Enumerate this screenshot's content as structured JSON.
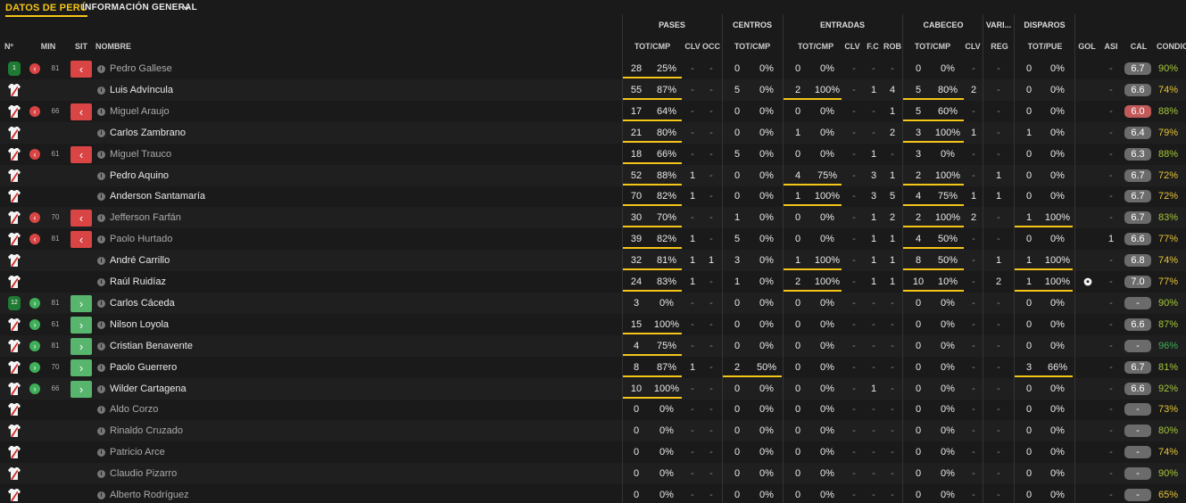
{
  "header": {
    "title": "DATOS DE PERÚ",
    "view": "INFORMACIÓN GENERAL"
  },
  "groups": [
    "PASES",
    "CENTROS",
    "ENTRADAS",
    "CABECEO",
    "VARI...",
    "DISPAROS"
  ],
  "columns": [
    "Nº",
    "MIN",
    "SIT",
    "NOMBRE",
    "TOT/CMP",
    "CLV",
    "OCC",
    "TOT/CMP",
    "TOT/CMP",
    "CLV",
    "F.C",
    "ROB",
    "TOT/CMP",
    "CLV",
    "REG",
    "TOT/PUE",
    "GOL",
    "ASI",
    "CAL",
    "CONDIC."
  ],
  "colors": {
    "accent": "#f5c518",
    "sub_out": "#d94444",
    "sub_in": "#58b56d",
    "gk": "#1f7a33"
  },
  "players": [
    {
      "n": "1",
      "gk": true,
      "sit": "out",
      "min": "81",
      "name": "Pedro Gallese",
      "p_tot": "28",
      "p_pct": "25%",
      "p_bar": 0.95,
      "p_clv": "-",
      "p_occ": "-",
      "c_tot": "0",
      "c_pct": "0%",
      "c_bar": 0,
      "e_tot": "0",
      "e_pct": "0%",
      "e_bar": 0,
      "e_clv": "-",
      "e_fc": "-",
      "e_rob": "-",
      "h_tot": "0",
      "h_pct": "0%",
      "h_bar": 0,
      "h_clv": "-",
      "reg": "-",
      "s_tot": "0",
      "s_pct": "0%",
      "s_bar": 0,
      "gol": "",
      "asi": "-",
      "cal": "6.7",
      "cond": "90%",
      "cond_color": "#a4c639"
    },
    {
      "n": "",
      "gk": false,
      "sit": "",
      "min": "",
      "name": "Luis Advíncula",
      "p_tot": "55",
      "p_pct": "87%",
      "p_bar": 0.95,
      "p_clv": "-",
      "p_occ": "-",
      "c_tot": "5",
      "c_pct": "0%",
      "c_bar": 0,
      "e_tot": "2",
      "e_pct": "100%",
      "e_bar": 0.95,
      "e_clv": "-",
      "e_fc": "1",
      "e_rob": "4",
      "h_tot": "5",
      "h_pct": "80%",
      "h_bar": 0.95,
      "h_clv": "2",
      "reg": "-",
      "s_tot": "0",
      "s_pct": "0%",
      "s_bar": 0,
      "gol": "",
      "asi": "-",
      "cal": "6.6",
      "cond": "74%",
      "cond_color": "#e5c437"
    },
    {
      "n": "",
      "gk": false,
      "sit": "out",
      "min": "66",
      "name": "Miguel Araujo",
      "p_tot": "17",
      "p_pct": "64%",
      "p_bar": 0.95,
      "p_clv": "-",
      "p_occ": "-",
      "c_tot": "0",
      "c_pct": "0%",
      "c_bar": 0,
      "e_tot": "0",
      "e_pct": "0%",
      "e_bar": 0,
      "e_clv": "-",
      "e_fc": "-",
      "e_rob": "1",
      "h_tot": "5",
      "h_pct": "60%",
      "h_bar": 0.95,
      "h_clv": "-",
      "reg": "-",
      "s_tot": "0",
      "s_pct": "0%",
      "s_bar": 0,
      "gol": "",
      "asi": "-",
      "cal": "6.0",
      "cal_low": true,
      "cond": "88%",
      "cond_color": "#a4c639"
    },
    {
      "n": "",
      "gk": false,
      "sit": "",
      "min": "",
      "name": "Carlos Zambrano",
      "p_tot": "21",
      "p_pct": "80%",
      "p_bar": 0.95,
      "p_clv": "-",
      "p_occ": "-",
      "c_tot": "0",
      "c_pct": "0%",
      "c_bar": 0,
      "e_tot": "1",
      "e_pct": "0%",
      "e_bar": 0,
      "e_clv": "-",
      "e_fc": "-",
      "e_rob": "2",
      "h_tot": "3",
      "h_pct": "100%",
      "h_bar": 0.95,
      "h_clv": "1",
      "reg": "-",
      "s_tot": "1",
      "s_pct": "0%",
      "s_bar": 0,
      "gol": "",
      "asi": "-",
      "cal": "6.4",
      "cond": "79%",
      "cond_color": "#e5c437"
    },
    {
      "n": "",
      "gk": false,
      "sit": "out",
      "min": "61",
      "name": "Miguel Trauco",
      "p_tot": "18",
      "p_pct": "66%",
      "p_bar": 0.95,
      "p_clv": "-",
      "p_occ": "-",
      "c_tot": "5",
      "c_pct": "0%",
      "c_bar": 0,
      "e_tot": "0",
      "e_pct": "0%",
      "e_bar": 0,
      "e_clv": "-",
      "e_fc": "1",
      "e_rob": "-",
      "h_tot": "3",
      "h_pct": "0%",
      "h_bar": 0,
      "h_clv": "-",
      "reg": "-",
      "s_tot": "0",
      "s_pct": "0%",
      "s_bar": 0,
      "gol": "",
      "asi": "-",
      "cal": "6.3",
      "cond": "88%",
      "cond_color": "#a4c639"
    },
    {
      "n": "",
      "gk": false,
      "sit": "",
      "min": "",
      "name": "Pedro Aquino",
      "p_tot": "52",
      "p_pct": "88%",
      "p_bar": 0.95,
      "p_clv": "1",
      "p_occ": "-",
      "c_tot": "0",
      "c_pct": "0%",
      "c_bar": 0,
      "e_tot": "4",
      "e_pct": "75%",
      "e_bar": 0.95,
      "e_clv": "-",
      "e_fc": "3",
      "e_rob": "1",
      "h_tot": "2",
      "h_pct": "100%",
      "h_bar": 0.95,
      "h_clv": "-",
      "reg": "1",
      "s_tot": "0",
      "s_pct": "0%",
      "s_bar": 0,
      "gol": "",
      "asi": "-",
      "cal": "6.7",
      "cond": "72%",
      "cond_color": "#e5c437"
    },
    {
      "n": "",
      "gk": false,
      "sit": "",
      "min": "",
      "name": "Anderson Santamaría",
      "p_tot": "70",
      "p_pct": "82%",
      "p_bar": 0.95,
      "p_clv": "1",
      "p_occ": "-",
      "c_tot": "0",
      "c_pct": "0%",
      "c_bar": 0,
      "e_tot": "1",
      "e_pct": "100%",
      "e_bar": 0.95,
      "e_clv": "-",
      "e_fc": "3",
      "e_rob": "5",
      "h_tot": "4",
      "h_pct": "75%",
      "h_bar": 0.95,
      "h_clv": "1",
      "reg": "1",
      "s_tot": "0",
      "s_pct": "0%",
      "s_bar": 0,
      "gol": "",
      "asi": "-",
      "cal": "6.7",
      "cond": "72%",
      "cond_color": "#e5c437"
    },
    {
      "n": "",
      "gk": false,
      "sit": "out",
      "min": "70",
      "name": "Jefferson Farfán",
      "p_tot": "30",
      "p_pct": "70%",
      "p_bar": 0.95,
      "p_clv": "-",
      "p_occ": "-",
      "c_tot": "1",
      "c_pct": "0%",
      "c_bar": 0,
      "e_tot": "0",
      "e_pct": "0%",
      "e_bar": 0,
      "e_clv": "-",
      "e_fc": "1",
      "e_rob": "2",
      "h_tot": "2",
      "h_pct": "100%",
      "h_bar": 0.95,
      "h_clv": "2",
      "reg": "-",
      "s_tot": "1",
      "s_pct": "100%",
      "s_bar": 0.95,
      "gol": "",
      "asi": "-",
      "cal": "6.7",
      "cond": "83%",
      "cond_color": "#a4c639"
    },
    {
      "n": "",
      "gk": false,
      "sit": "out",
      "min": "81",
      "name": "Paolo Hurtado",
      "p_tot": "39",
      "p_pct": "82%",
      "p_bar": 0.95,
      "p_clv": "1",
      "p_occ": "-",
      "c_tot": "5",
      "c_pct": "0%",
      "c_bar": 0,
      "e_tot": "0",
      "e_pct": "0%",
      "e_bar": 0,
      "e_clv": "-",
      "e_fc": "1",
      "e_rob": "1",
      "h_tot": "4",
      "h_pct": "50%",
      "h_bar": 0.95,
      "h_clv": "-",
      "reg": "-",
      "s_tot": "0",
      "s_pct": "0%",
      "s_bar": 0,
      "gol": "",
      "asi": "1",
      "cal": "6.6",
      "cond": "77%",
      "cond_color": "#e5c437"
    },
    {
      "n": "",
      "gk": false,
      "sit": "",
      "min": "",
      "name": "André Carrillo",
      "p_tot": "32",
      "p_pct": "81%",
      "p_bar": 0.95,
      "p_clv": "1",
      "p_occ": "1",
      "c_tot": "3",
      "c_pct": "0%",
      "c_bar": 0,
      "e_tot": "1",
      "e_pct": "100%",
      "e_bar": 0.95,
      "e_clv": "-",
      "e_fc": "1",
      "e_rob": "1",
      "h_tot": "8",
      "h_pct": "50%",
      "h_bar": 0.95,
      "h_clv": "-",
      "reg": "1",
      "s_tot": "1",
      "s_pct": "100%",
      "s_bar": 0.95,
      "gol": "",
      "asi": "-",
      "cal": "6.8",
      "cond": "74%",
      "cond_color": "#e5c437"
    },
    {
      "n": "",
      "gk": false,
      "sit": "",
      "min": "",
      "name": "Raúl Ruidíaz",
      "p_tot": "24",
      "p_pct": "83%",
      "p_bar": 0.95,
      "p_clv": "1",
      "p_occ": "-",
      "c_tot": "1",
      "c_pct": "0%",
      "c_bar": 0,
      "e_tot": "2",
      "e_pct": "100%",
      "e_bar": 0.95,
      "e_clv": "-",
      "e_fc": "1",
      "e_rob": "1",
      "h_tot": "10",
      "h_pct": "10%",
      "h_bar": 0.95,
      "h_clv": "-",
      "reg": "2",
      "s_tot": "1",
      "s_pct": "100%",
      "s_bar": 0.95,
      "gol": "ball",
      "asi": "-",
      "cal": "7.0",
      "cond": "77%",
      "cond_color": "#e5c437"
    },
    {
      "n": "12",
      "gk": true,
      "sit": "in",
      "min": "81",
      "name": "Carlos Cáceda",
      "p_tot": "3",
      "p_pct": "0%",
      "p_bar": 0,
      "p_clv": "-",
      "p_occ": "-",
      "c_tot": "0",
      "c_pct": "0%",
      "c_bar": 0,
      "e_tot": "0",
      "e_pct": "0%",
      "e_bar": 0,
      "e_clv": "-",
      "e_fc": "-",
      "e_rob": "-",
      "h_tot": "0",
      "h_pct": "0%",
      "h_bar": 0,
      "h_clv": "-",
      "reg": "-",
      "s_tot": "0",
      "s_pct": "0%",
      "s_bar": 0,
      "gol": "",
      "asi": "-",
      "cal": "-",
      "cond": "90%",
      "cond_color": "#a4c639"
    },
    {
      "n": "",
      "gk": false,
      "sit": "in",
      "min": "61",
      "name": "Nilson Loyola",
      "p_tot": "15",
      "p_pct": "100%",
      "p_bar": 0.95,
      "p_clv": "-",
      "p_occ": "-",
      "c_tot": "0",
      "c_pct": "0%",
      "c_bar": 0,
      "e_tot": "0",
      "e_pct": "0%",
      "e_bar": 0,
      "e_clv": "-",
      "e_fc": "-",
      "e_rob": "-",
      "h_tot": "0",
      "h_pct": "0%",
      "h_bar": 0,
      "h_clv": "-",
      "reg": "-",
      "s_tot": "0",
      "s_pct": "0%",
      "s_bar": 0,
      "gol": "",
      "asi": "-",
      "cal": "6.6",
      "cond": "87%",
      "cond_color": "#a4c639"
    },
    {
      "n": "",
      "gk": false,
      "sit": "in",
      "min": "81",
      "name": "Cristian Benavente",
      "p_tot": "4",
      "p_pct": "75%",
      "p_bar": 0.95,
      "p_clv": "-",
      "p_occ": "-",
      "c_tot": "0",
      "c_pct": "0%",
      "c_bar": 0,
      "e_tot": "0",
      "e_pct": "0%",
      "e_bar": 0,
      "e_clv": "-",
      "e_fc": "-",
      "e_rob": "-",
      "h_tot": "0",
      "h_pct": "0%",
      "h_bar": 0,
      "h_clv": "-",
      "reg": "-",
      "s_tot": "0",
      "s_pct": "0%",
      "s_bar": 0,
      "gol": "",
      "asi": "-",
      "cal": "-",
      "cond": "96%",
      "cond_color": "#3fae58"
    },
    {
      "n": "",
      "gk": false,
      "sit": "in",
      "min": "70",
      "name": "Paolo Guerrero",
      "p_tot": "8",
      "p_pct": "87%",
      "p_bar": 0.95,
      "p_clv": "1",
      "p_occ": "-",
      "c_tot": "2",
      "c_pct": "50%",
      "c_bar": 0.95,
      "e_tot": "0",
      "e_pct": "0%",
      "e_bar": 0,
      "e_clv": "-",
      "e_fc": "-",
      "e_rob": "-",
      "h_tot": "0",
      "h_pct": "0%",
      "h_bar": 0,
      "h_clv": "-",
      "reg": "-",
      "s_tot": "3",
      "s_pct": "66%",
      "s_bar": 0.95,
      "gol": "",
      "asi": "-",
      "cal": "6.7",
      "cond": "81%",
      "cond_color": "#a4c639"
    },
    {
      "n": "",
      "gk": false,
      "sit": "in",
      "min": "66",
      "name": "Wilder Cartagena",
      "p_tot": "10",
      "p_pct": "100%",
      "p_bar": 0.95,
      "p_clv": "-",
      "p_occ": "-",
      "c_tot": "0",
      "c_pct": "0%",
      "c_bar": 0,
      "e_tot": "0",
      "e_pct": "0%",
      "e_bar": 0,
      "e_clv": "-",
      "e_fc": "1",
      "e_rob": "-",
      "h_tot": "0",
      "h_pct": "0%",
      "h_bar": 0,
      "h_clv": "-",
      "reg": "-",
      "s_tot": "0",
      "s_pct": "0%",
      "s_bar": 0,
      "gol": "",
      "asi": "-",
      "cal": "6.6",
      "cond": "92%",
      "cond_color": "#a4c639"
    },
    {
      "n": "",
      "gk": false,
      "sit": "",
      "min": "",
      "name": "Aldo Corzo",
      "unused": true,
      "p_tot": "0",
      "p_pct": "0%",
      "p_bar": 0,
      "p_clv": "-",
      "p_occ": "-",
      "c_tot": "0",
      "c_pct": "0%",
      "c_bar": 0,
      "e_tot": "0",
      "e_pct": "0%",
      "e_bar": 0,
      "e_clv": "-",
      "e_fc": "-",
      "e_rob": "-",
      "h_tot": "0",
      "h_pct": "0%",
      "h_bar": 0,
      "h_clv": "-",
      "reg": "-",
      "s_tot": "0",
      "s_pct": "0%",
      "s_bar": 0,
      "gol": "",
      "asi": "-",
      "cal": "-",
      "cond": "73%",
      "cond_color": "#e5c437"
    },
    {
      "n": "",
      "gk": false,
      "sit": "",
      "min": "",
      "name": "Rinaldo Cruzado",
      "unused": true,
      "p_tot": "0",
      "p_pct": "0%",
      "p_bar": 0,
      "p_clv": "-",
      "p_occ": "-",
      "c_tot": "0",
      "c_pct": "0%",
      "c_bar": 0,
      "e_tot": "0",
      "e_pct": "0%",
      "e_bar": 0,
      "e_clv": "-",
      "e_fc": "-",
      "e_rob": "-",
      "h_tot": "0",
      "h_pct": "0%",
      "h_bar": 0,
      "h_clv": "-",
      "reg": "-",
      "s_tot": "0",
      "s_pct": "0%",
      "s_bar": 0,
      "gol": "",
      "asi": "-",
      "cal": "-",
      "cond": "80%",
      "cond_color": "#a4c639"
    },
    {
      "n": "",
      "gk": false,
      "sit": "",
      "min": "",
      "name": "Patricio Arce",
      "unused": true,
      "p_tot": "0",
      "p_pct": "0%",
      "p_bar": 0,
      "p_clv": "-",
      "p_occ": "-",
      "c_tot": "0",
      "c_pct": "0%",
      "c_bar": 0,
      "e_tot": "0",
      "e_pct": "0%",
      "e_bar": 0,
      "e_clv": "-",
      "e_fc": "-",
      "e_rob": "-",
      "h_tot": "0",
      "h_pct": "0%",
      "h_bar": 0,
      "h_clv": "-",
      "reg": "-",
      "s_tot": "0",
      "s_pct": "0%",
      "s_bar": 0,
      "gol": "",
      "asi": "-",
      "cal": "-",
      "cond": "74%",
      "cond_color": "#e5c437"
    },
    {
      "n": "",
      "gk": false,
      "sit": "",
      "min": "",
      "name": "Claudio Pizarro",
      "unused": true,
      "p_tot": "0",
      "p_pct": "0%",
      "p_bar": 0,
      "p_clv": "-",
      "p_occ": "-",
      "c_tot": "0",
      "c_pct": "0%",
      "c_bar": 0,
      "e_tot": "0",
      "e_pct": "0%",
      "e_bar": 0,
      "e_clv": "-",
      "e_fc": "-",
      "e_rob": "-",
      "h_tot": "0",
      "h_pct": "0%",
      "h_bar": 0,
      "h_clv": "-",
      "reg": "-",
      "s_tot": "0",
      "s_pct": "0%",
      "s_bar": 0,
      "gol": "",
      "asi": "-",
      "cal": "-",
      "cond": "90%",
      "cond_color": "#a4c639"
    },
    {
      "n": "",
      "gk": false,
      "sit": "",
      "min": "",
      "name": "Alberto Rodríguez",
      "unused": true,
      "p_tot": "0",
      "p_pct": "0%",
      "p_bar": 0,
      "p_clv": "-",
      "p_occ": "-",
      "c_tot": "0",
      "c_pct": "0%",
      "c_bar": 0,
      "e_tot": "0",
      "e_pct": "0%",
      "e_bar": 0,
      "e_clv": "-",
      "e_fc": "-",
      "e_rob": "-",
      "h_tot": "0",
      "h_pct": "0%",
      "h_bar": 0,
      "h_clv": "-",
      "reg": "-",
      "s_tot": "0",
      "s_pct": "0%",
      "s_bar": 0,
      "gol": "",
      "asi": "-",
      "cal": "-",
      "cond": "65%",
      "cond_color": "#e5c437"
    }
  ]
}
